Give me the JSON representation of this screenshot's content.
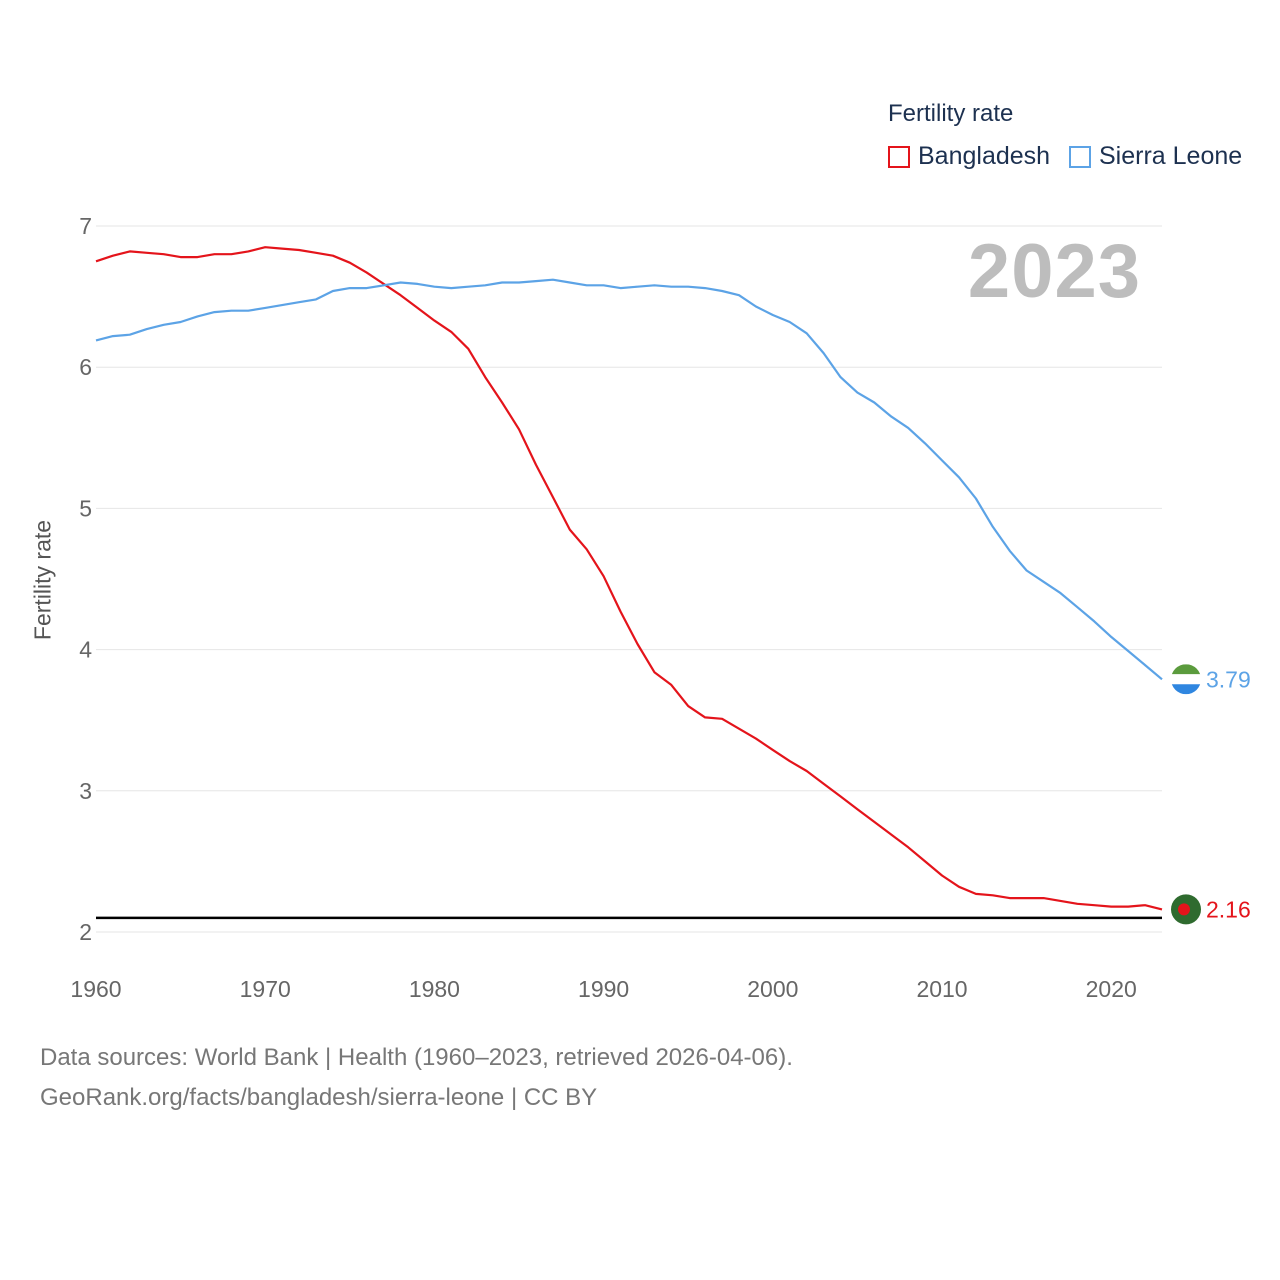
{
  "legend": {
    "title": "Fertility rate",
    "items": [
      {
        "name": "Bangladesh",
        "color": "#e4141b"
      },
      {
        "name": "Sierra Leone",
        "color": "#5ca3e6"
      }
    ]
  },
  "year_label": "2023",
  "source": {
    "line1": "Data sources: World Bank | Health (1960–2023, retrieved 2026-04-06).",
    "line2": "GeoRank.org/facts/bangladesh/sierra-leone | CC BY"
  },
  "chart_data": {
    "type": "line",
    "title": "",
    "xlabel": "",
    "ylabel": "Fertility rate",
    "xlim": [
      1960,
      2023
    ],
    "ylim": [
      2,
      7
    ],
    "x_ticks": [
      1960,
      1970,
      1980,
      1990,
      2000,
      2010,
      2020
    ],
    "y_ticks": [
      2,
      3,
      4,
      5,
      6,
      7
    ],
    "reference_line": 2.1,
    "x": [
      1960,
      1961,
      1962,
      1963,
      1964,
      1965,
      1966,
      1967,
      1968,
      1969,
      1970,
      1971,
      1972,
      1973,
      1974,
      1975,
      1976,
      1977,
      1978,
      1979,
      1980,
      1981,
      1982,
      1983,
      1984,
      1985,
      1986,
      1987,
      1988,
      1989,
      1990,
      1991,
      1992,
      1993,
      1994,
      1995,
      1996,
      1997,
      1998,
      1999,
      2000,
      2001,
      2002,
      2003,
      2004,
      2005,
      2006,
      2007,
      2008,
      2009,
      2010,
      2011,
      2012,
      2013,
      2014,
      2015,
      2016,
      2017,
      2018,
      2019,
      2020,
      2021,
      2022,
      2023
    ],
    "series": [
      {
        "name": "Bangladesh",
        "color": "#e4141b",
        "end_label": "2.16",
        "values": [
          6.75,
          6.79,
          6.82,
          6.81,
          6.8,
          6.78,
          6.78,
          6.8,
          6.8,
          6.82,
          6.85,
          6.84,
          6.83,
          6.81,
          6.79,
          6.74,
          6.67,
          6.59,
          6.51,
          6.42,
          6.33,
          6.25,
          6.13,
          5.93,
          5.75,
          5.56,
          5.31,
          5.08,
          4.85,
          4.71,
          4.52,
          4.27,
          4.04,
          3.84,
          3.75,
          3.6,
          3.52,
          3.51,
          3.44,
          3.37,
          3.29,
          3.21,
          3.14,
          3.05,
          2.96,
          2.87,
          2.78,
          2.69,
          2.6,
          2.5,
          2.4,
          2.32,
          2.27,
          2.26,
          2.24,
          2.24,
          2.24,
          2.22,
          2.2,
          2.19,
          2.18,
          2.18,
          2.19,
          2.16
        ]
      },
      {
        "name": "Sierra Leone",
        "color": "#5ca3e6",
        "end_label": "3.79",
        "values": [
          6.19,
          6.22,
          6.23,
          6.27,
          6.3,
          6.32,
          6.36,
          6.39,
          6.4,
          6.4,
          6.42,
          6.44,
          6.46,
          6.48,
          6.54,
          6.56,
          6.56,
          6.58,
          6.6,
          6.59,
          6.57,
          6.56,
          6.57,
          6.58,
          6.6,
          6.6,
          6.61,
          6.62,
          6.6,
          6.58,
          6.58,
          6.56,
          6.57,
          6.58,
          6.57,
          6.57,
          6.56,
          6.54,
          6.51,
          6.43,
          6.37,
          6.32,
          6.24,
          6.1,
          5.93,
          5.82,
          5.75,
          5.65,
          5.57,
          5.46,
          5.34,
          5.22,
          5.07,
          4.87,
          4.7,
          4.56,
          4.48,
          4.4,
          4.3,
          4.2,
          4.09,
          3.99,
          3.89,
          3.79
        ]
      }
    ]
  }
}
